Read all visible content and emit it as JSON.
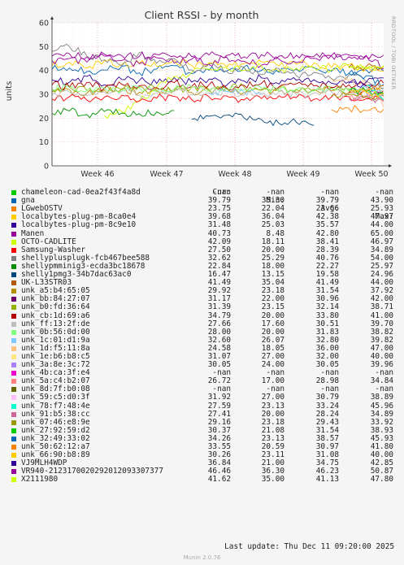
{
  "chart_data": {
    "type": "line",
    "title": "Client RSSI - by month",
    "ylabel": "units",
    "ylim": [
      0,
      60
    ],
    "yticks": [
      0,
      10,
      20,
      30,
      40,
      50,
      60
    ],
    "xticks": [
      "Week 46",
      "Week 47",
      "Week 48",
      "Week 49",
      "Week 50"
    ],
    "grid": true,
    "series": [
      {
        "name": "chameleon-cad-0ea2f43f4a8d",
        "color": "#00cc00",
        "cur": "-nan",
        "min": "-nan",
        "avg": "-nan",
        "max": "-nan",
        "values": []
      },
      {
        "name": "gna",
        "color": "#0066b3",
        "cur": "39.79",
        "min": "35.30",
        "avg": "39.79",
        "max": "43.90",
        "values": [
          40.5,
          41,
          39.5,
          40.2,
          41.8,
          39,
          40.6,
          42,
          38.6,
          40.1,
          39.8,
          41.5,
          40,
          39.2,
          40.6,
          41.1,
          39.6,
          38.8,
          40.3,
          39.79
        ]
      },
      {
        "name": "LGwebOSTV",
        "color": "#ff8000",
        "cur": "23.75",
        "min": "22.04",
        "avg": "23.66",
        "max": "25.93",
        "values": [
          null,
          null,
          null,
          null,
          null,
          null,
          null,
          null,
          null,
          null,
          null,
          null,
          null,
          null,
          null,
          null,
          23.5,
          24.1,
          23.2,
          23.75
        ]
      },
      {
        "name": "localbytes-plug-pm-8ca0e4",
        "color": "#ffcc00",
        "cur": "39.68",
        "min": "36.04",
        "avg": "42.38",
        "max": "47.97",
        "values": [
          42,
          43.5,
          41,
          44,
          42.5,
          43,
          41.8,
          44.2,
          42.1,
          43.3,
          41.5,
          42.8,
          43.7,
          41.9,
          42.6,
          43.1,
          41.2,
          42.4,
          40.8,
          39.68
        ]
      },
      {
        "name": "localbytes-plug-pm-8c9e10",
        "color": "#330099",
        "cur": "31.48",
        "min": "25.03",
        "avg": "35.57",
        "max": "44.00",
        "values": [
          36,
          35,
          37.5,
          34,
          36.2,
          35.8,
          34.5,
          37,
          35.1,
          36.4,
          33.8,
          35.6,
          36.9,
          34.3,
          35.9,
          36.1,
          34.7,
          35.2,
          33.4,
          31.48
        ]
      },
      {
        "name": "Manen",
        "color": "#990099",
        "cur": "40.73",
        "min": "8.48",
        "avg": "42.80",
        "max": "65.00",
        "values": [
          44,
          45,
          43.5,
          46,
          44.2,
          42.8,
          45.3,
          43.1,
          44.7,
          42.4,
          45.6,
          43.9,
          42.2,
          44.8,
          43.3,
          45.1,
          46.2,
          45.8,
          46.3,
          40.73
        ]
      },
      {
        "name": "OCTO-CADLITE",
        "color": "#ccff00",
        "cur": "42.09",
        "min": "18.11",
        "avg": "38.41",
        "max": "46.97",
        "values": [
          null,
          null,
          null,
          21,
          22.5,
          27,
          33,
          37.5,
          39,
          40.5,
          41.2,
          40.1,
          41.8,
          39.6,
          40.9,
          41.4,
          40.2,
          41.7,
          40.6,
          42.09
        ]
      },
      {
        "name": "Samsung-Washer",
        "color": "#ff0000",
        "cur": "27.50",
        "min": "20.00",
        "avg": "28.39",
        "max": "34.89",
        "values": [
          28,
          29,
          27.5,
          28.8,
          29.6,
          27.2,
          28.4,
          29.1,
          27.8,
          28.9,
          29.3,
          27.6,
          28.2,
          29.4,
          28.6,
          27.9,
          28.8,
          29.0,
          28.1,
          27.5
        ]
      },
      {
        "name": "shellyplusplugk-fcb467bee588",
        "color": "#808080",
        "cur": "32.62",
        "min": "25.29",
        "avg": "40.76",
        "max": "54.00",
        "values": [
          48,
          50,
          46,
          44.5,
          42,
          47.5,
          43,
          45,
          40.2,
          42.8,
          39.6,
          41.3,
          38.4,
          40.7,
          37.8,
          39.2,
          36.6,
          38.1,
          35.4,
          32.62
        ]
      },
      {
        "name": "shellypmminig3-ecda3bc18678",
        "color": "#008f00",
        "cur": "22.84",
        "min": "18.00",
        "avg": "22.27",
        "max": "25.97",
        "values": [
          22,
          23,
          21.5,
          22.8,
          22.1,
          21.9,
          22.6,
          23.2,
          null,
          null,
          null,
          null,
          null,
          null,
          null,
          null,
          null,
          null,
          null,
          null
        ]
      },
      {
        "name": "shelly1pmg3-34b7dac63ac0",
        "color": "#00487d",
        "cur": "16.47",
        "min": "13.15",
        "avg": "19.58",
        "max": "24.96",
        "values": [
          null,
          null,
          null,
          null,
          null,
          null,
          null,
          null,
          19.5,
          20.8,
          21.2,
          20.1,
          19.4,
          17.8,
          18.3,
          16.9,
          null,
          null,
          null,
          null
        ]
      },
      {
        "name": "UK-L33STR03",
        "color": "#b35a00",
        "cur": "41.49",
        "min": "35.04",
        "avg": "41.49",
        "max": "44.00",
        "values": [
          null,
          null,
          null,
          null,
          null,
          null,
          null,
          null,
          null,
          null,
          null,
          null,
          null,
          null,
          null,
          null,
          null,
          41.2,
          41.8,
          41.49
        ]
      },
      {
        "name": "unk_a5:b4:65:05",
        "color": "#b38f00",
        "cur": "29.92",
        "min": "23.18",
        "avg": "31.54",
        "max": "37.92",
        "values": [
          31,
          32,
          30.5,
          31.8,
          32.4,
          30.9,
          31.6,
          32.2,
          30.8,
          31.3,
          32.6,
          30.6,
          31.9,
          31.2,
          30.7,
          32.1,
          31.4,
          30.9,
          31.5,
          29.92
        ]
      },
      {
        "name": "unk_bb:84:27:07",
        "color": "#6b006b",
        "cur": "31.17",
        "min": "22.00",
        "avg": "30.96",
        "max": "42.00",
        "values": [
          null,
          null,
          null,
          null,
          null,
          null,
          null,
          null,
          null,
          null,
          null,
          null,
          null,
          null,
          null,
          null,
          null,
          30.5,
          31.4,
          31.17
        ]
      },
      {
        "name": "unk_b0:fd:36:64",
        "color": "#8fb300",
        "cur": "31.39",
        "min": "23.15",
        "avg": "32.14",
        "max": "38.71",
        "values": [
          32,
          33,
          31.6,
          32.7,
          31.9,
          33.2,
          32.4,
          31.5,
          32.9,
          31.8,
          32.3,
          33.1,
          31.7,
          32.5,
          32.0,
          31.4,
          33.0,
          32.2,
          31.9,
          31.39
        ]
      },
      {
        "name": "unk_cb:1d:69:a6",
        "color": "#b30000",
        "cur": "34.79",
        "min": "20.00",
        "avg": "33.80",
        "max": "41.00",
        "values": [
          34,
          33,
          35,
          32.5,
          34.2,
          33.6,
          32.8,
          34.9,
          33.3,
          34.1,
          32.6,
          33.8,
          34.6,
          33.1,
          34.4,
          33.5,
          32.9,
          34.0,
          33.7,
          34.79
        ]
      },
      {
        "name": "unk_ff:13:2f:de",
        "color": "#bebebe",
        "cur": "27.66",
        "min": "17.60",
        "avg": "30.51",
        "max": "39.70",
        "values": [
          30,
          31,
          29.5,
          30.8,
          31.3,
          29.7,
          30.4,
          31.1,
          29.9,
          30.6,
          31.2,
          29.6,
          30.3,
          31.0,
          29.8,
          30.5,
          31.1,
          30.2,
          29.4,
          27.66
        ]
      },
      {
        "name": "unk_0b:56:0d:00",
        "color": "#80ff80",
        "cur": "28.00",
        "min": "20.00",
        "avg": "31.83",
        "max": "38.82",
        "values": [
          32,
          33,
          31.4,
          32.6,
          31.9,
          32.8,
          31.2,
          32.3,
          33.0,
          31.6,
          32.1,
          31.8,
          32.5,
          31.3,
          32.2,
          31.7,
          32.4,
          31.5,
          30.6,
          28.0
        ]
      },
      {
        "name": "unk_1c:01:d1:9a",
        "color": "#80c9ff",
        "cur": "32.60",
        "min": "26.07",
        "avg": "32.80",
        "max": "39.82",
        "values": [
          null,
          null,
          null,
          null,
          null,
          null,
          null,
          null,
          null,
          30.5,
          31.2,
          30.8,
          29.9,
          null,
          null,
          null,
          null,
          32.4,
          32.9,
          32.6
        ]
      },
      {
        "name": "unk_1d:f5:11:8a",
        "color": "#ffc080",
        "cur": "24.58",
        "min": "18.05",
        "avg": "36.00",
        "max": "47.00",
        "values": [
          null,
          null,
          null,
          null,
          null,
          null,
          null,
          null,
          null,
          null,
          null,
          null,
          null,
          null,
          null,
          null,
          36.4,
          35.6,
          34.8,
          24.58
        ]
      },
      {
        "name": "unk_1e:b6:b8:c5",
        "color": "#ffe680",
        "cur": "31.07",
        "min": "27.00",
        "avg": "32.00",
        "max": "40.00",
        "values": [
          null,
          null,
          null,
          null,
          null,
          null,
          null,
          null,
          null,
          null,
          null,
          null,
          null,
          null,
          null,
          null,
          null,
          32.3,
          31.8,
          31.07
        ]
      },
      {
        "name": "unk_3a:8e:3c:72",
        "color": "#aa80ff",
        "cur": "30.05",
        "min": "24.00",
        "avg": "30.05",
        "max": "39.96",
        "values": [
          null,
          null,
          null,
          null,
          null,
          null,
          null,
          null,
          null,
          null,
          null,
          null,
          null,
          null,
          null,
          null,
          null,
          null,
          30.4,
          30.05
        ]
      },
      {
        "name": "unk_4b:ca:3f:e4",
        "color": "#ee00cc",
        "cur": "-nan",
        "min": "-nan",
        "avg": "-nan",
        "max": "-nan",
        "values": []
      },
      {
        "name": "unk_5a:c4:b2:07",
        "color": "#ff8080",
        "cur": "26.72",
        "min": "17.00",
        "avg": "28.98",
        "max": "34.84",
        "values": [
          null,
          null,
          null,
          null,
          null,
          null,
          null,
          null,
          null,
          null,
          null,
          null,
          null,
          null,
          null,
          null,
          null,
          28.6,
          29.3,
          26.72
        ]
      },
      {
        "name": "unk_8d:7f:b0:08",
        "color": "#666600",
        "cur": "-nan",
        "min": "-nan",
        "avg": "-nan",
        "max": "-nan",
        "values": []
      },
      {
        "name": "unk_59:c5:d0:3f",
        "color": "#ffbfff",
        "cur": "31.92",
        "min": "27.00",
        "avg": "30.79",
        "max": "38.89",
        "values": [
          null,
          null,
          null,
          null,
          null,
          null,
          null,
          null,
          null,
          null,
          null,
          null,
          null,
          null,
          null,
          null,
          null,
          30.4,
          31.1,
          31.92
        ]
      },
      {
        "name": "unk_78:f7:48:4e",
        "color": "#00ffcc",
        "cur": "27.59",
        "min": "23.13",
        "avg": "33.24",
        "max": "45.96",
        "values": [
          null,
          null,
          null,
          null,
          null,
          null,
          null,
          null,
          null,
          null,
          null,
          null,
          null,
          null,
          null,
          null,
          null,
          null,
          33.6,
          27.59
        ]
      },
      {
        "name": "unk_91:b5:38:cc",
        "color": "#cc6699",
        "cur": "27.41",
        "min": "20.00",
        "avg": "28.24",
        "max": "34.89",
        "values": [
          null,
          null,
          null,
          null,
          null,
          null,
          null,
          null,
          null,
          null,
          null,
          null,
          null,
          null,
          null,
          null,
          null,
          28.1,
          28.6,
          27.41
        ]
      },
      {
        "name": "unk_07:46:e8:9e",
        "color": "#999900",
        "cur": "29.16",
        "min": "23.18",
        "avg": "29.43",
        "max": "33.92",
        "values": [
          null,
          null,
          null,
          null,
          null,
          null,
          null,
          null,
          null,
          null,
          null,
          null,
          null,
          null,
          null,
          null,
          29.4,
          29.8,
          29.2,
          29.16
        ]
      },
      {
        "name": "unk_27:92:59:d2",
        "color": "#00cc00",
        "cur": "30.37",
        "min": "21.08",
        "avg": "31.54",
        "max": "38.93",
        "values": [
          null,
          null,
          null,
          null,
          null,
          null,
          null,
          null,
          null,
          null,
          null,
          null,
          null,
          null,
          null,
          null,
          null,
          31.7,
          31.2,
          30.37
        ]
      },
      {
        "name": "unk_32:49:33:02",
        "color": "#0066b3",
        "cur": "34.26",
        "min": "23.13",
        "avg": "38.57",
        "max": "45.93",
        "values": [
          null,
          null,
          null,
          null,
          null,
          null,
          null,
          null,
          null,
          null,
          null,
          null,
          null,
          null,
          null,
          null,
          null,
          38.9,
          37.8,
          34.26
        ]
      },
      {
        "name": "unk_50:62:12:a7",
        "color": "#ff8000",
        "cur": "33.55",
        "min": "20.59",
        "avg": "30.97",
        "max": "41.80",
        "values": [
          null,
          null,
          null,
          null,
          null,
          null,
          null,
          null,
          null,
          null,
          null,
          null,
          null,
          null,
          null,
          null,
          null,
          30.6,
          31.4,
          33.55
        ]
      },
      {
        "name": "unk_66:90:b8:89",
        "color": "#ffcc00",
        "cur": "30.26",
        "min": "23.11",
        "avg": "31.08",
        "max": "40.00",
        "values": [
          null,
          null,
          null,
          null,
          null,
          null,
          null,
          null,
          null,
          null,
          null,
          null,
          null,
          null,
          null,
          null,
          null,
          31.2,
          30.9,
          30.26
        ]
      },
      {
        "name": "VJ9MLH4WDP",
        "color": "#330099",
        "cur": "36.84",
        "min": "21.00",
        "avg": "34.75",
        "max": "42.85",
        "values": [
          null,
          null,
          null,
          null,
          null,
          null,
          null,
          null,
          null,
          null,
          null,
          null,
          null,
          null,
          null,
          null,
          null,
          34.6,
          35.1,
          36.84
        ]
      },
      {
        "name": "VR940-2123170020292012093307377",
        "color": "#990099",
        "cur": "46.46",
        "min": "36.30",
        "avg": "46.23",
        "max": "50.87",
        "values": [
          46,
          47,
          45.6,
          46.8,
          46.2,
          45.9,
          46.7,
          46.1,
          45.8,
          46.5,
          46.3,
          45.7,
          46.6,
          46.0,
          46.4,
          45.9,
          46.2,
          46.5,
          46.1,
          46.46
        ]
      },
      {
        "name": "X2111980",
        "color": "#ccff00",
        "cur": "41.62",
        "min": "35.00",
        "avg": "41.13",
        "max": "47.80",
        "values": [
          null,
          null,
          null,
          null,
          null,
          null,
          null,
          null,
          null,
          null,
          null,
          null,
          null,
          null,
          null,
          null,
          null,
          41.0,
          41.4,
          41.62
        ]
      }
    ]
  },
  "legend_header": {
    "cur": "Cur:",
    "min": "Min:",
    "avg": "Avg:",
    "max": "Max:"
  },
  "last_update": "Last update: Thu Dec 11 09:20:00 2025",
  "footer": "Munin 2.0.76",
  "side_text": "RRDTOOL / TOBI OETIKER"
}
